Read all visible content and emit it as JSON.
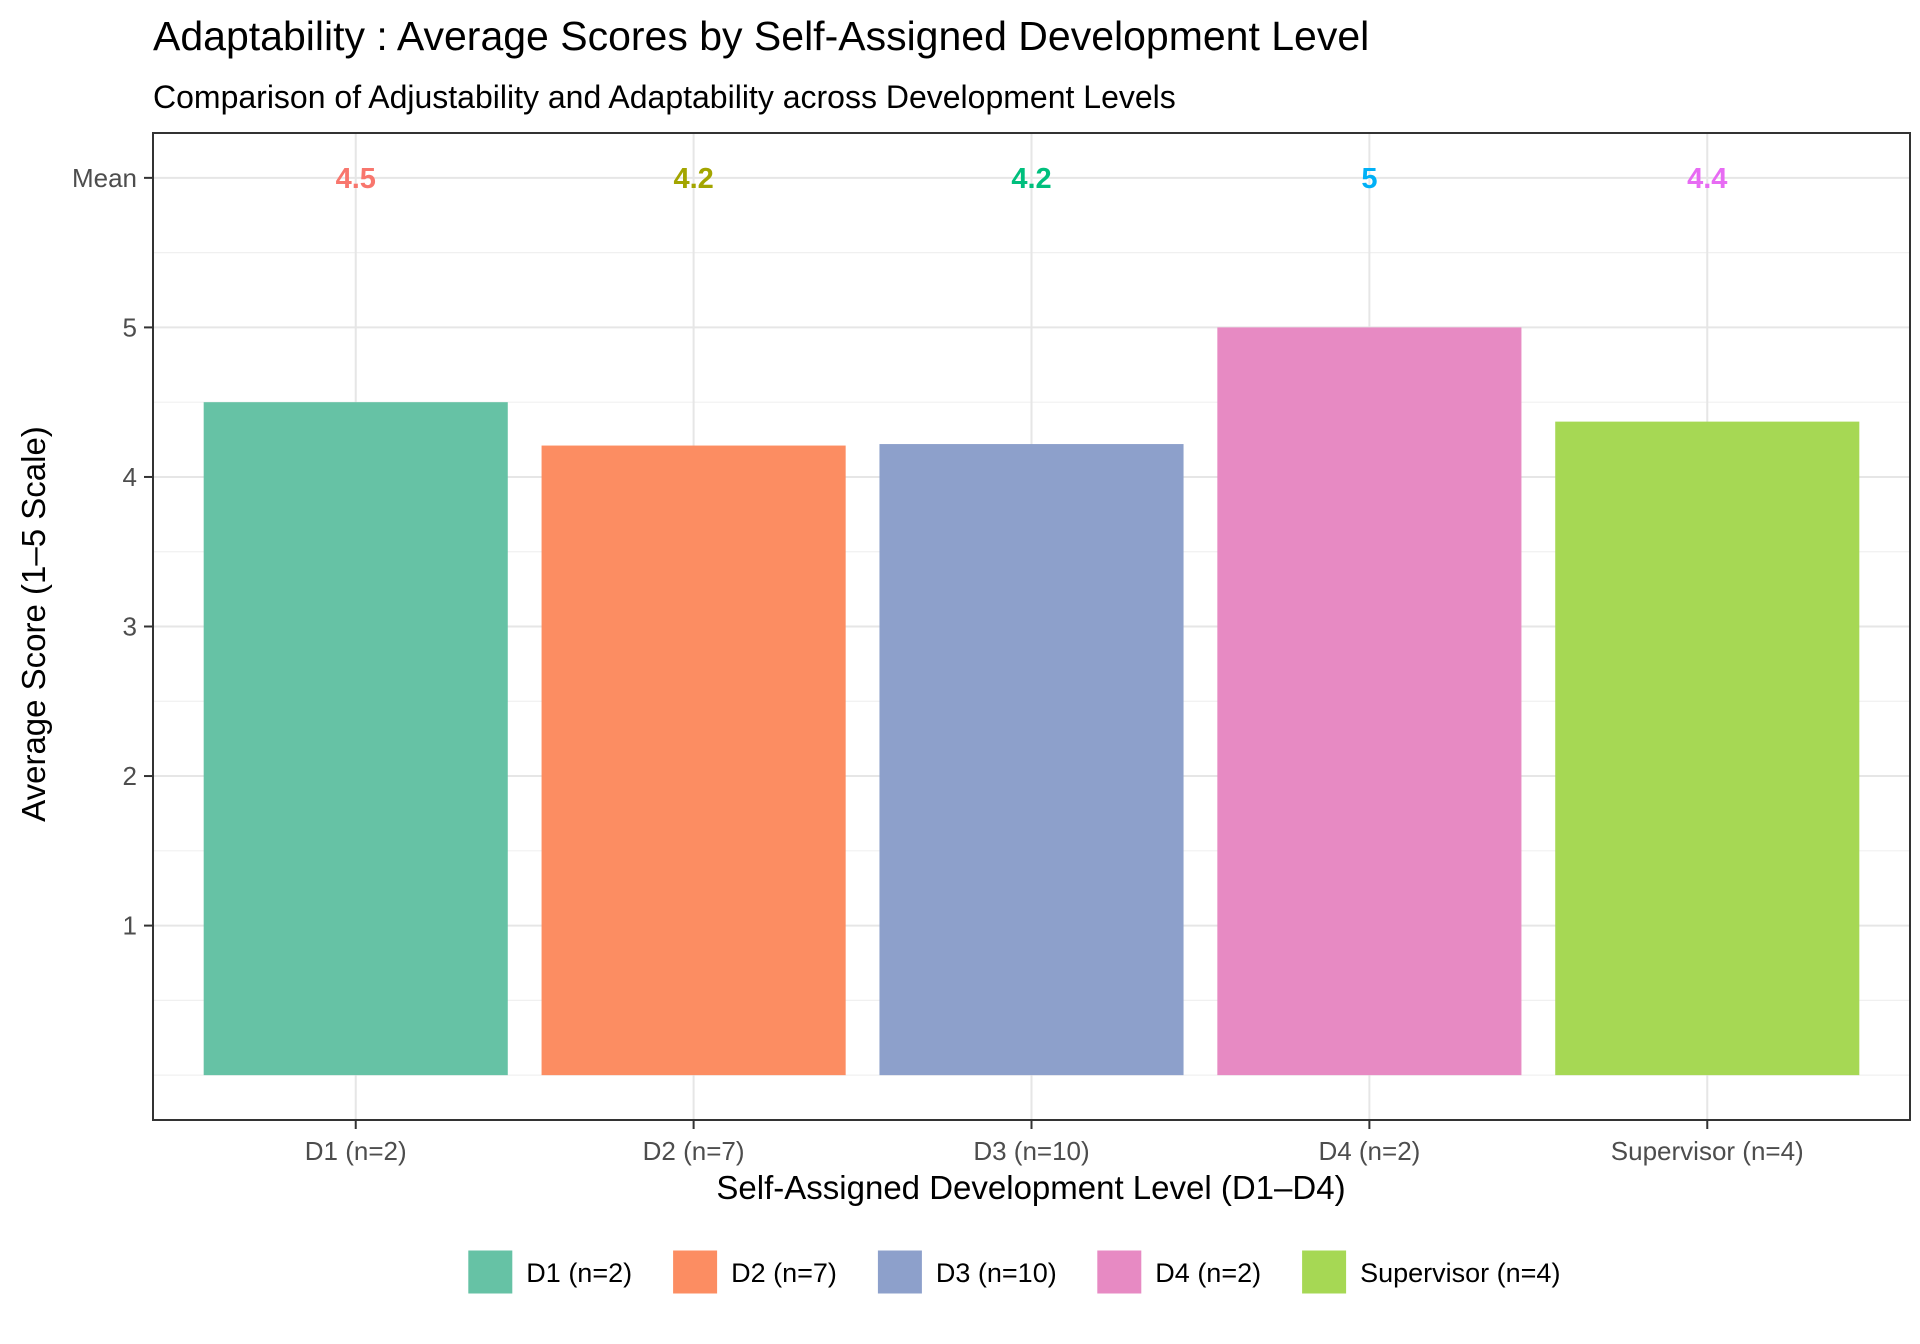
{
  "chart_data": {
    "type": "bar",
    "title": "Adaptability : Average Scores by Self-Assigned Development Level",
    "subtitle": "Comparison of Adjustability and Adaptability across Development Levels",
    "xlabel": "Self-Assigned Development Level (D1–D4)",
    "ylabel": "Average Score (1–5 Scale)",
    "categories": [
      "D1 (n=2)",
      "D2 (n=7)",
      "D3 (n=10)",
      "D4 (n=2)",
      "Supervisor (n=4)"
    ],
    "values": [
      4.5,
      4.21,
      4.22,
      5.0,
      4.37
    ],
    "mean_row_label": "Mean",
    "mean_labels": [
      "4.5",
      "4.2",
      "4.2",
      "5",
      "4.4"
    ],
    "y_ticks": [
      1,
      2,
      3,
      4,
      5
    ],
    "ylim": [
      -0.3,
      6.3
    ],
    "mean_row_y": 6,
    "grid": true,
    "legend_position": "bottom",
    "bar_colors": [
      "#66c2a5",
      "#fc8d62",
      "#8da0cb",
      "#e78ac3",
      "#a6d854"
    ],
    "mean_label_colors": [
      "#f8766d",
      "#a3a500",
      "#00bf7d",
      "#00b0f6",
      "#e76bf3"
    ],
    "legend": [
      "D1 (n=2)",
      "D2 (n=7)",
      "D3 (n=10)",
      "D4 (n=2)",
      "Supervisor (n=4)"
    ]
  }
}
